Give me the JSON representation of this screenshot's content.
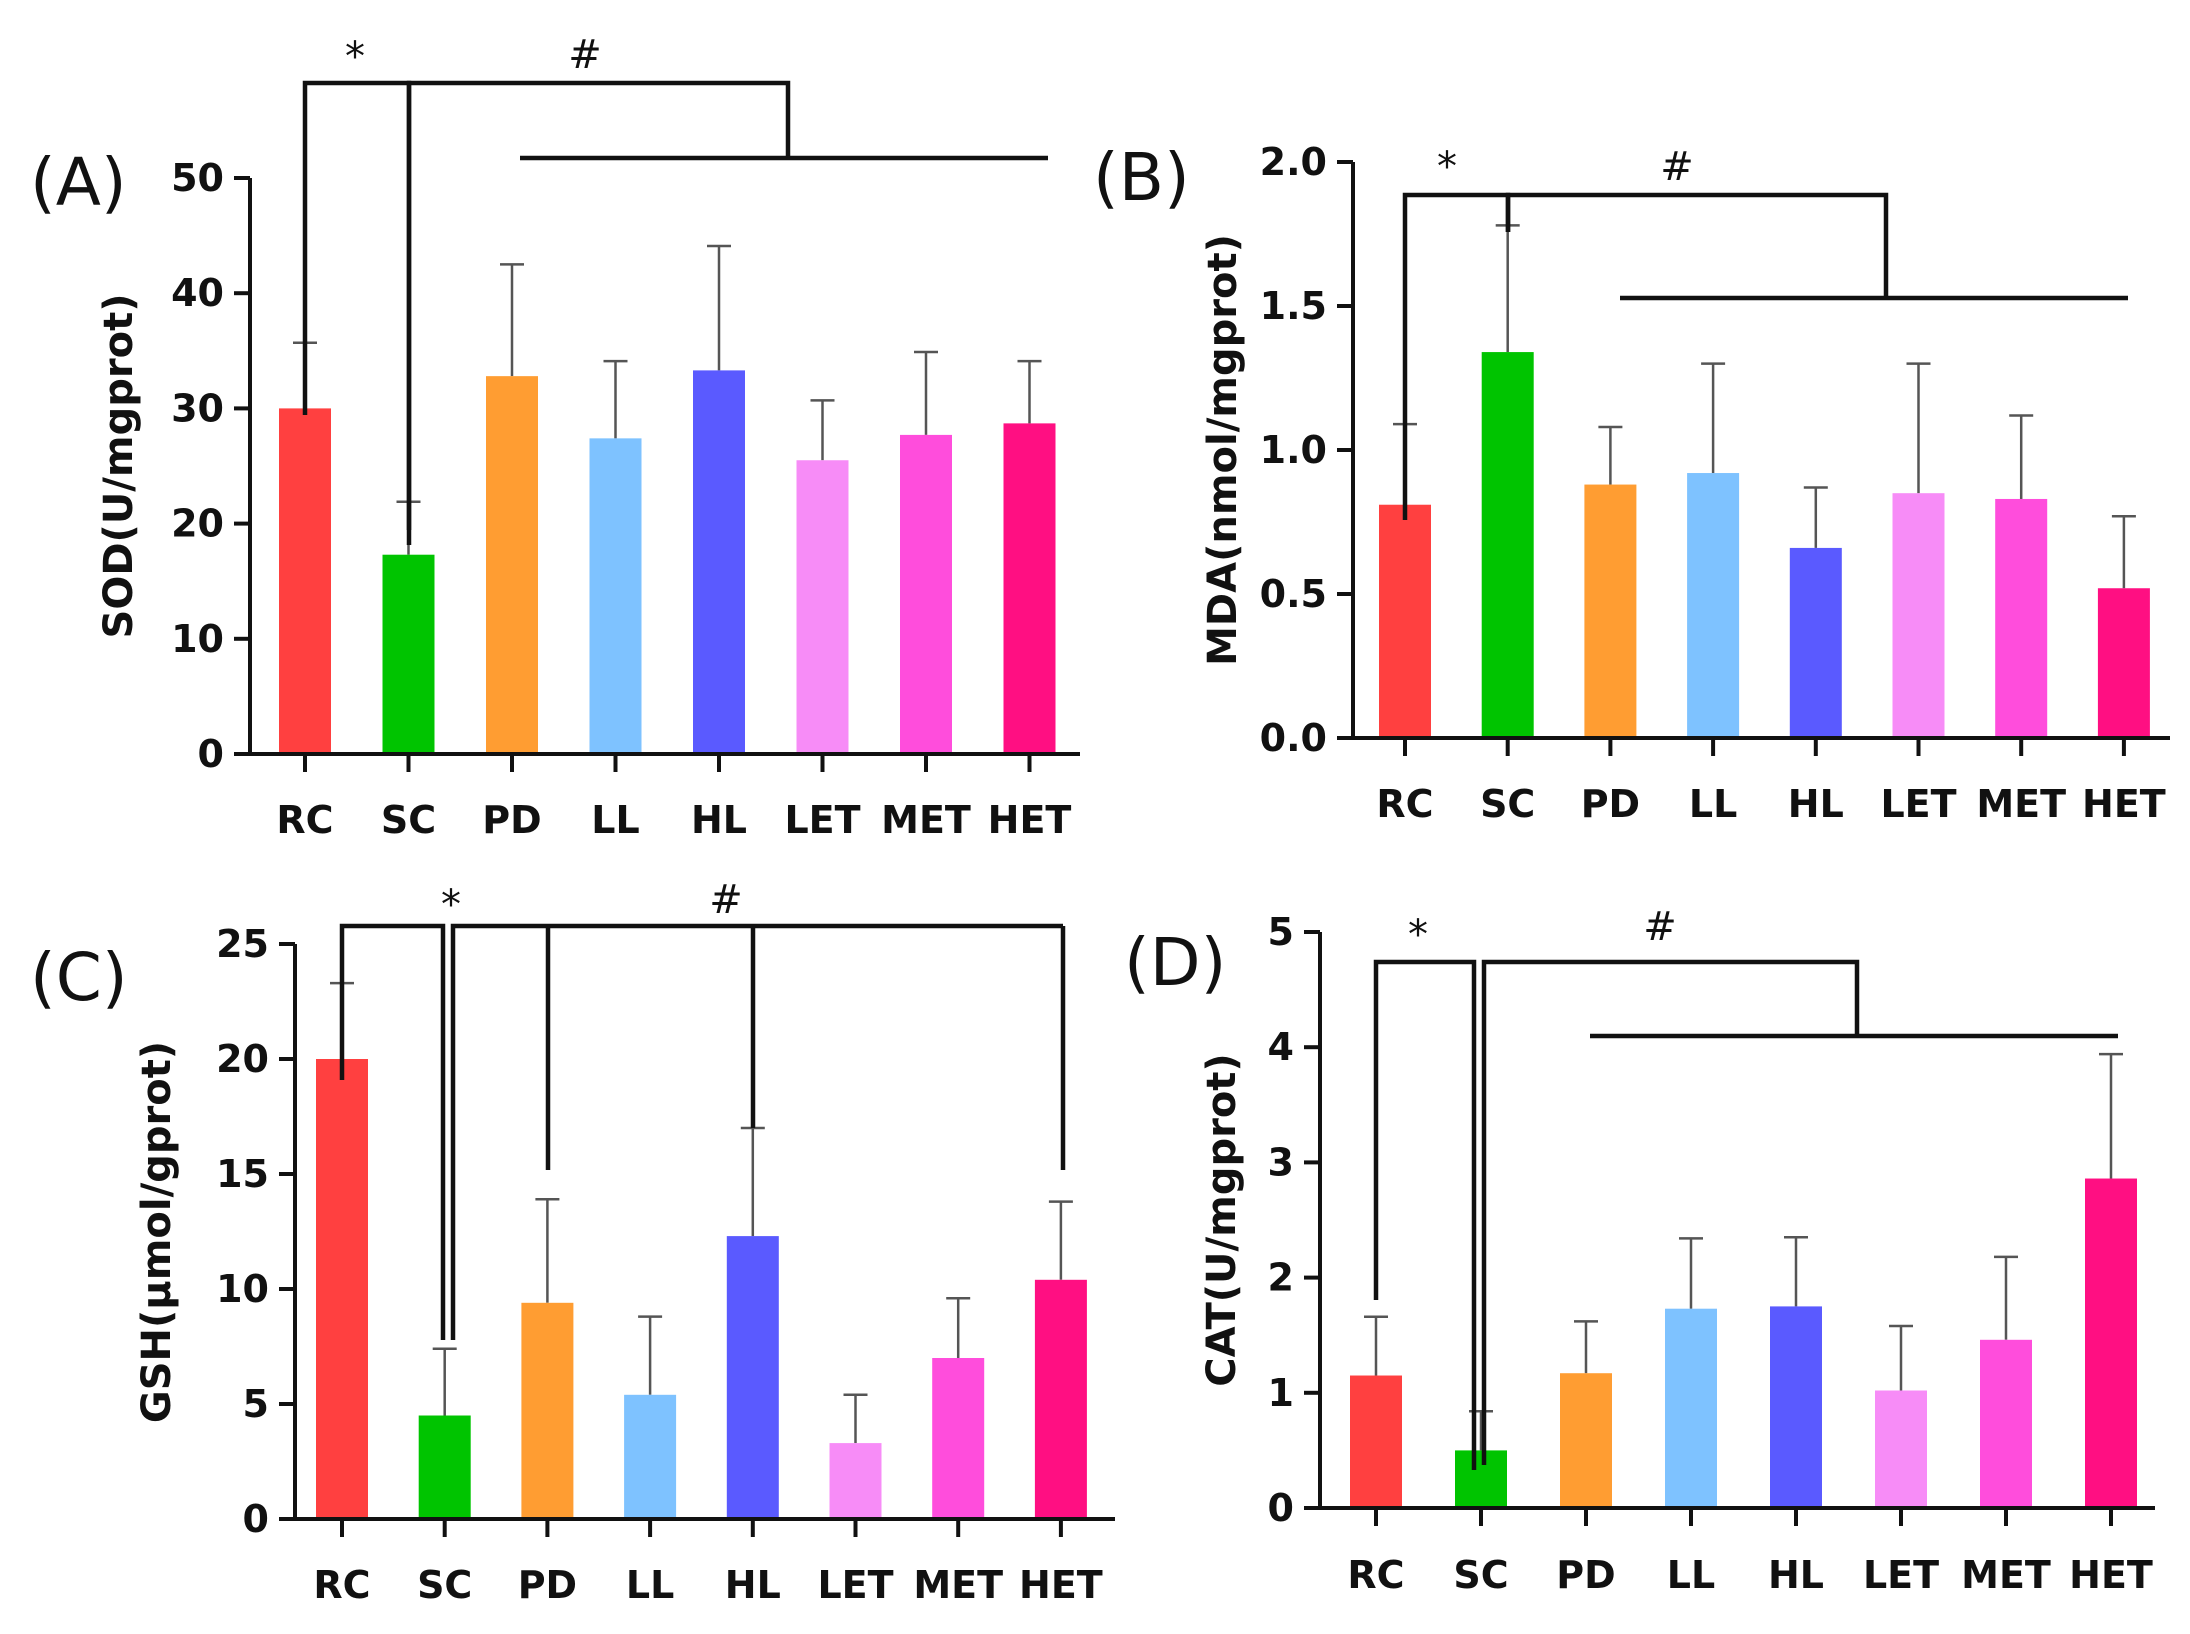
{
  "colors": {
    "RC": "#ff4040",
    "SC": "#00c400",
    "PD": "#ff9d32",
    "LL": "#7ec2ff",
    "HL": "#5a5aff",
    "LET": "#f78cf7",
    "MET": "#ff4ddc",
    "HET": "#ff0f82"
  },
  "chart_data": [
    {
      "type": "bar",
      "panel": "(A)",
      "ylabel": "SOD(U/mgprot)",
      "categories": [
        "RC",
        "SC",
        "PD",
        "LL",
        "HL",
        "LET",
        "MET",
        "HET"
      ],
      "values": [
        30,
        17.3,
        32.8,
        27.4,
        33.3,
        25.5,
        27.7,
        28.7
      ],
      "errors": [
        5.7,
        4.6,
        9.7,
        6.7,
        10.8,
        5.2,
        7.2,
        5.4
      ],
      "ylim": [
        0,
        50
      ],
      "yticks": [
        "0",
        "10",
        "20",
        "30",
        "40",
        "50"
      ],
      "sig_star": "*",
      "sig_hash": "#"
    },
    {
      "type": "bar",
      "panel": "(B)",
      "ylabel": "MDA(nmol/mgprot)",
      "categories": [
        "RC",
        "SC",
        "PD",
        "LL",
        "HL",
        "LET",
        "MET",
        "HET"
      ],
      "values": [
        0.81,
        1.34,
        0.88,
        0.92,
        0.66,
        0.85,
        0.83,
        0.52
      ],
      "errors": [
        0.28,
        0.44,
        0.2,
        0.38,
        0.21,
        0.45,
        0.29,
        0.25
      ],
      "ylim": [
        0,
        2.0
      ],
      "yticks": [
        "0.0",
        "0.5",
        "1.0",
        "1.5",
        "2.0"
      ],
      "sig_star": "*",
      "sig_hash": "#"
    },
    {
      "type": "bar",
      "panel": "(C)",
      "ylabel": "GSH(μmol/gprot)",
      "categories": [
        "RC",
        "SC",
        "PD",
        "LL",
        "HL",
        "LET",
        "MET",
        "HET"
      ],
      "values": [
        20,
        4.5,
        9.4,
        5.4,
        12.3,
        3.3,
        7.0,
        10.4
      ],
      "errors": [
        3.3,
        2.9,
        4.5,
        3.4,
        4.7,
        2.1,
        2.6,
        3.4
      ],
      "ylim": [
        0,
        25
      ],
      "yticks": [
        "0",
        "5",
        "10",
        "15",
        "20",
        "25"
      ],
      "sig_star": "*",
      "sig_hash": "#"
    },
    {
      "type": "bar",
      "panel": "(D)",
      "ylabel": "CAT(U/mgprot)",
      "categories": [
        "RC",
        "SC",
        "PD",
        "LL",
        "HL",
        "LET",
        "MET",
        "HET"
      ],
      "values": [
        1.15,
        0.5,
        1.17,
        1.73,
        1.75,
        1.02,
        1.46,
        2.86
      ],
      "errors": [
        0.51,
        0.34,
        0.45,
        0.61,
        0.6,
        0.56,
        0.72,
        1.08
      ],
      "ylim": [
        0,
        5
      ],
      "yticks": [
        "0",
        "1",
        "2",
        "3",
        "4",
        "5"
      ],
      "sig_star": "*",
      "sig_hash": "#"
    }
  ]
}
